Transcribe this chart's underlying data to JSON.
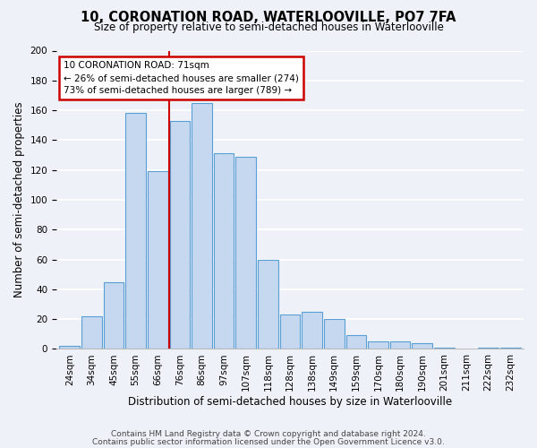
{
  "title": "10, CORONATION ROAD, WATERLOOVILLE, PO7 7FA",
  "subtitle": "Size of property relative to semi-detached houses in Waterlooville",
  "xlabel": "Distribution of semi-detached houses by size in Waterlooville",
  "ylabel": "Number of semi-detached properties",
  "bin_labels": [
    "24sqm",
    "34sqm",
    "45sqm",
    "55sqm",
    "66sqm",
    "76sqm",
    "86sqm",
    "97sqm",
    "107sqm",
    "118sqm",
    "128sqm",
    "138sqm",
    "149sqm",
    "159sqm",
    "170sqm",
    "180sqm",
    "190sqm",
    "201sqm",
    "211sqm",
    "222sqm",
    "232sqm"
  ],
  "values": [
    2,
    22,
    45,
    158,
    119,
    153,
    165,
    131,
    129,
    60,
    23,
    25,
    20,
    9,
    5,
    5,
    4,
    1,
    0,
    1,
    1
  ],
  "bar_color": "#c5d8f0",
  "bar_edge_color": "#5a9fd4",
  "property_line_bin_index": 4.5,
  "annotation_title": "10 CORONATION ROAD: 71sqm",
  "annotation_line1": "← 26% of semi-detached houses are smaller (274)",
  "annotation_line2": "73% of semi-detached houses are larger (789) →",
  "annotation_box_color": "#ffffff",
  "annotation_box_edge_color": "#cc0000",
  "vline_color": "#cc0000",
  "ylim": [
    0,
    200
  ],
  "yticks": [
    0,
    20,
    40,
    60,
    80,
    100,
    120,
    140,
    160,
    180,
    200
  ],
  "footer1": "Contains HM Land Registry data © Crown copyright and database right 2024.",
  "footer2": "Contains public sector information licensed under the Open Government Licence v3.0.",
  "background_color": "#eef2f8",
  "grid_color": "#ffffff",
  "title_fontsize": 10.5,
  "subtitle_fontsize": 8.5,
  "axis_label_fontsize": 8.5,
  "tick_fontsize": 7.5,
  "footer_fontsize": 6.5
}
